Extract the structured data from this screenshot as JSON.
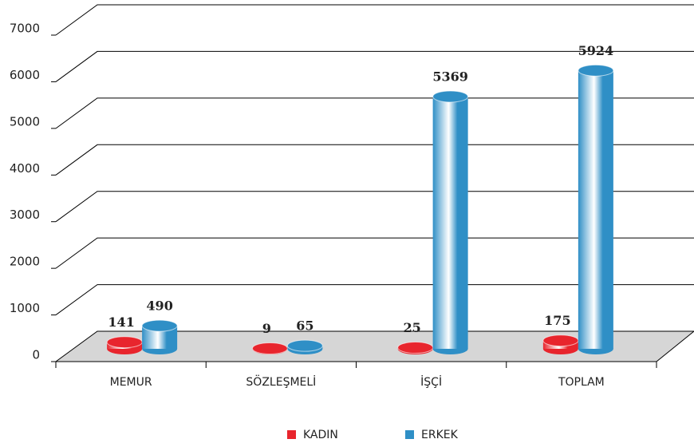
{
  "chart_data": {
    "type": "bar3d",
    "categories": [
      "MEMUR",
      "SÖZLEŞMELİ",
      "İŞÇİ",
      "TOPLAM"
    ],
    "series": [
      {
        "name": "KADIN",
        "color": "#e8252d",
        "values": [
          141,
          9,
          25,
          175
        ]
      },
      {
        "name": "ERKEK",
        "color": "#2f8fc6",
        "values": [
          490,
          65,
          5369,
          5924
        ]
      }
    ],
    "ylim": [
      0,
      7000
    ],
    "yticks": [
      0,
      1000,
      2000,
      3000,
      4000,
      5000,
      6000,
      7000
    ],
    "grid": true
  }
}
